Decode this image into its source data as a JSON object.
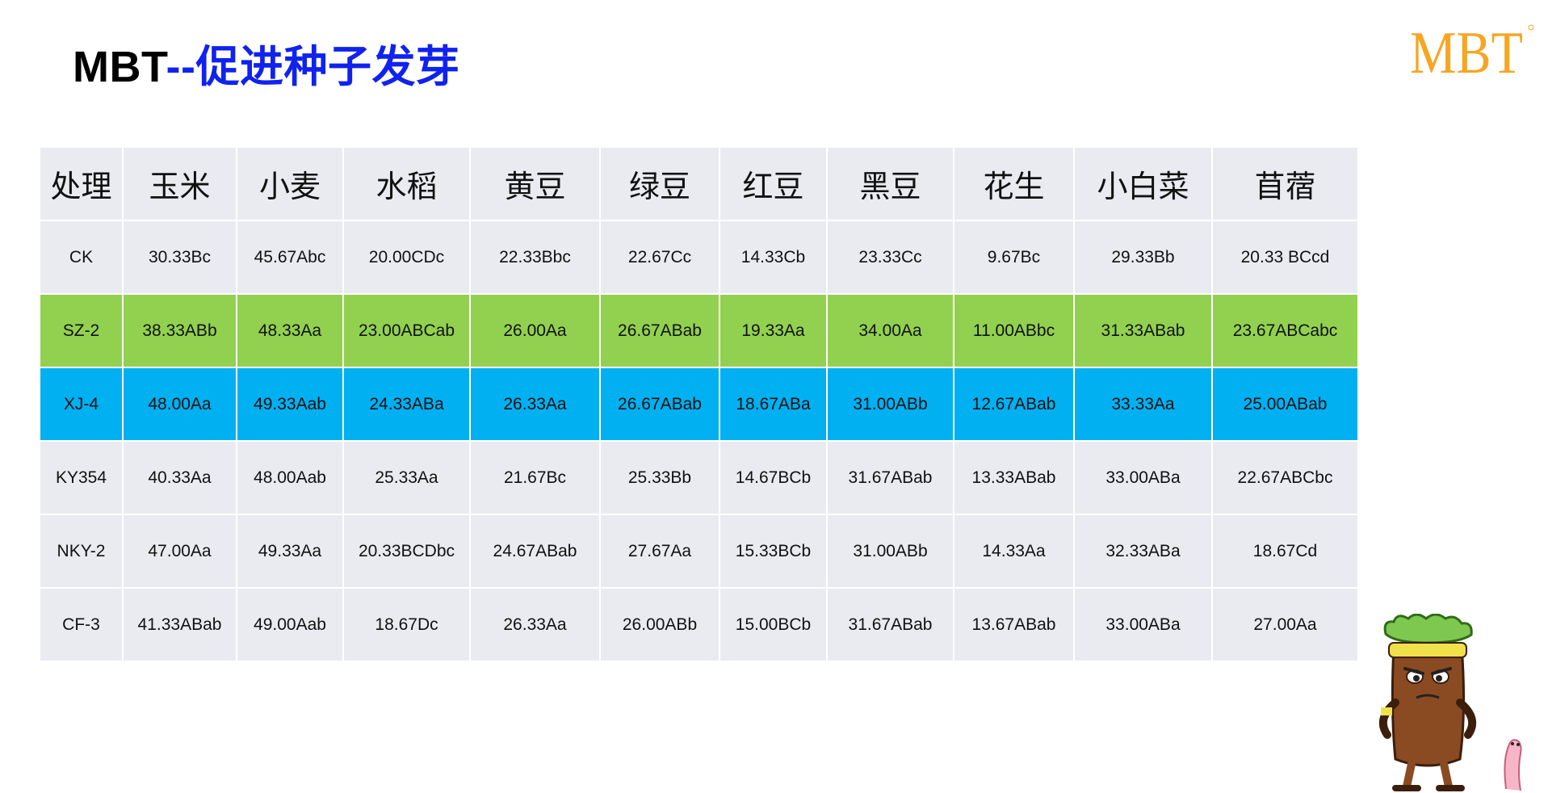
{
  "slide": {
    "title_prefix": "MBT",
    "title_sep": "--",
    "title_main": "促进种子发芽"
  },
  "logo": {
    "text": "MBT",
    "color": "#f5a623"
  },
  "table": {
    "headers": [
      "处理",
      "玉米",
      "小麦",
      "水稻",
      "黄豆",
      "绿豆",
      "红豆",
      "黑豆",
      "花生",
      "小白菜",
      "苜蓿"
    ],
    "rows": [
      {
        "style": "grey",
        "cells": [
          "CK",
          "30.33Bc",
          "45.67Abc",
          "20.00CDc",
          "22.33Bbc",
          "22.67Cc",
          "14.33Cb",
          "23.33Cc",
          "9.67Bc",
          "29.33Bb",
          "20.33 BCcd"
        ]
      },
      {
        "style": "green",
        "cells": [
          "SZ-2",
          "38.33ABb",
          "48.33Aa",
          "23.00ABCab",
          "26.00Aa",
          "26.67ABab",
          "19.33Aa",
          "34.00Aa",
          "11.00ABbc",
          "31.33ABab",
          "23.67ABCabc"
        ]
      },
      {
        "style": "blue",
        "cells": [
          "XJ-4",
          "48.00Aa",
          "49.33Aab",
          "24.33ABa",
          "26.33Aa",
          "26.67ABab",
          "18.67ABa",
          "31.00ABb",
          "12.67ABab",
          "33.33Aa",
          "25.00ABab"
        ]
      },
      {
        "style": "grey",
        "cells": [
          "KY354",
          "40.33Aa",
          "48.00Aab",
          "25.33Aa",
          "21.67Bc",
          "25.33Bb",
          "14.67BCb",
          "31.67ABab",
          "13.33ABab",
          "33.00ABa",
          "22.67ABCbc"
        ]
      },
      {
        "style": "grey",
        "cells": [
          "NKY-2",
          "47.00Aa",
          "49.33Aa",
          "20.33BCDbc",
          "24.67ABab",
          "27.67Aa",
          "15.33BCb",
          "31.00ABb",
          "14.33Aa",
          "32.33ABa",
          "18.67Cd"
        ]
      },
      {
        "style": "grey",
        "cells": [
          "CF-3",
          "41.33ABab",
          "49.00Aab",
          "18.67Dc",
          "26.33Aa",
          "26.00ABb",
          "15.00BCb",
          "31.67ABab",
          "13.67ABab",
          "33.00ABa",
          "27.00Aa"
        ]
      }
    ]
  },
  "colors": {
    "header_bg": "#e9ebf0",
    "grey_row": "#e9ebf0",
    "green_row": "#92d050",
    "blue_row": "#00b0f0",
    "title_blue": "#1022ee"
  },
  "decor": {
    "mascot_icon": "vegetable-mascot-icon",
    "worm_icon": "worm-icon"
  }
}
